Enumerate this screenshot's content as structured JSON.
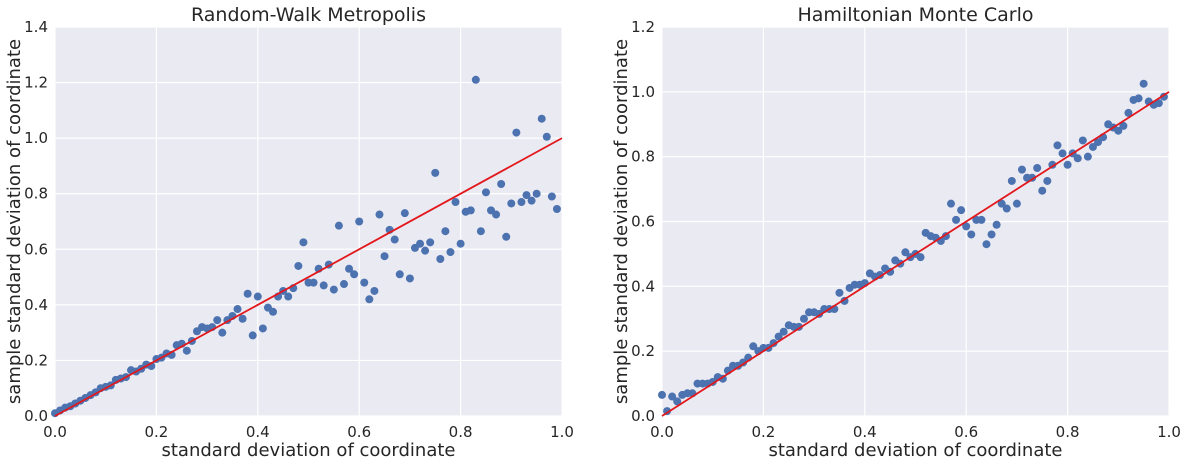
{
  "colors": {
    "plot_bg": "#EAEAF2",
    "grid": "#FFFFFF",
    "points": "#4C72B0",
    "line": "#E3181C",
    "text": "#262626"
  },
  "chart_data": [
    {
      "type": "scatter",
      "title": "Random-Walk Metropolis",
      "xlabel": "standard deviation of coordinate",
      "ylabel": "sample standard deviation of coordinate",
      "xlim": [
        0,
        1
      ],
      "ylim": [
        0,
        1.4
      ],
      "xticks": [
        "0.0",
        "0.2",
        "0.4",
        "0.6",
        "0.8",
        "1.0"
      ],
      "yticks": [
        "0.0",
        "0.2",
        "0.4",
        "0.6",
        "0.8",
        "1.0",
        "1.2",
        "1.4"
      ],
      "grid": true,
      "reference_line": {
        "x": [
          0,
          1
        ],
        "y": [
          0,
          1
        ]
      },
      "points": [
        [
          0.0,
          0.01
        ],
        [
          0.01,
          0.02
        ],
        [
          0.02,
          0.03
        ],
        [
          0.03,
          0.035
        ],
        [
          0.04,
          0.045
        ],
        [
          0.05,
          0.055
        ],
        [
          0.06,
          0.065
        ],
        [
          0.07,
          0.075
        ],
        [
          0.08,
          0.085
        ],
        [
          0.09,
          0.1
        ],
        [
          0.1,
          0.105
        ],
        [
          0.11,
          0.11
        ],
        [
          0.12,
          0.13
        ],
        [
          0.13,
          0.135
        ],
        [
          0.14,
          0.14
        ],
        [
          0.15,
          0.165
        ],
        [
          0.16,
          0.16
        ],
        [
          0.17,
          0.17
        ],
        [
          0.18,
          0.185
        ],
        [
          0.19,
          0.18
        ],
        [
          0.2,
          0.205
        ],
        [
          0.21,
          0.21
        ],
        [
          0.22,
          0.225
        ],
        [
          0.23,
          0.22
        ],
        [
          0.24,
          0.255
        ],
        [
          0.25,
          0.26
        ],
        [
          0.26,
          0.235
        ],
        [
          0.27,
          0.27
        ],
        [
          0.28,
          0.305
        ],
        [
          0.29,
          0.32
        ],
        [
          0.3,
          0.315
        ],
        [
          0.31,
          0.32
        ],
        [
          0.32,
          0.345
        ],
        [
          0.33,
          0.3
        ],
        [
          0.34,
          0.345
        ],
        [
          0.35,
          0.36
        ],
        [
          0.36,
          0.385
        ],
        [
          0.37,
          0.35
        ],
        [
          0.38,
          0.44
        ],
        [
          0.39,
          0.29
        ],
        [
          0.4,
          0.43
        ],
        [
          0.41,
          0.315
        ],
        [
          0.42,
          0.39
        ],
        [
          0.43,
          0.375
        ],
        [
          0.44,
          0.43
        ],
        [
          0.45,
          0.45
        ],
        [
          0.46,
          0.43
        ],
        [
          0.47,
          0.46
        ],
        [
          0.48,
          0.54
        ],
        [
          0.49,
          0.625
        ],
        [
          0.5,
          0.48
        ],
        [
          0.51,
          0.48
        ],
        [
          0.52,
          0.53
        ],
        [
          0.53,
          0.47
        ],
        [
          0.54,
          0.545
        ],
        [
          0.55,
          0.455
        ],
        [
          0.56,
          0.685
        ],
        [
          0.57,
          0.475
        ],
        [
          0.58,
          0.53
        ],
        [
          0.59,
          0.51
        ],
        [
          0.6,
          0.7
        ],
        [
          0.61,
          0.48
        ],
        [
          0.62,
          0.42
        ],
        [
          0.63,
          0.45
        ],
        [
          0.64,
          0.725
        ],
        [
          0.65,
          0.575
        ],
        [
          0.66,
          0.67
        ],
        [
          0.67,
          0.635
        ],
        [
          0.68,
          0.51
        ],
        [
          0.69,
          0.73
        ],
        [
          0.7,
          0.495
        ],
        [
          0.71,
          0.605
        ],
        [
          0.72,
          0.62
        ],
        [
          0.73,
          0.595
        ],
        [
          0.74,
          0.625
        ],
        [
          0.75,
          0.875
        ],
        [
          0.76,
          0.565
        ],
        [
          0.77,
          0.665
        ],
        [
          0.78,
          0.59
        ],
        [
          0.79,
          0.77
        ],
        [
          0.8,
          0.62
        ],
        [
          0.81,
          0.735
        ],
        [
          0.82,
          0.74
        ],
        [
          0.83,
          1.21
        ],
        [
          0.84,
          0.665
        ],
        [
          0.85,
          0.805
        ],
        [
          0.86,
          0.74
        ],
        [
          0.87,
          0.725
        ],
        [
          0.88,
          0.835
        ],
        [
          0.89,
          0.645
        ],
        [
          0.9,
          0.765
        ],
        [
          0.91,
          1.02
        ],
        [
          0.92,
          0.77
        ],
        [
          0.93,
          0.795
        ],
        [
          0.94,
          0.775
        ],
        [
          0.95,
          0.8
        ],
        [
          0.96,
          1.07
        ],
        [
          0.97,
          1.005
        ],
        [
          0.98,
          0.79
        ],
        [
          0.99,
          0.745
        ]
      ]
    },
    {
      "type": "scatter",
      "title": "Hamiltonian Monte Carlo",
      "xlabel": "standard deviation of coordinate",
      "ylabel": "sample standard deviation of coordinate",
      "xlim": [
        0,
        1
      ],
      "ylim": [
        0,
        1.2
      ],
      "xticks": [
        "0.0",
        "0.2",
        "0.4",
        "0.6",
        "0.8",
        "1.0"
      ],
      "yticks": [
        "0.0",
        "0.2",
        "0.4",
        "0.6",
        "0.8",
        "1.0",
        "1.2"
      ],
      "grid": true,
      "reference_line": {
        "x": [
          0,
          1
        ],
        "y": [
          0,
          1
        ]
      },
      "points": [
        [
          0.0,
          0.065
        ],
        [
          0.01,
          0.015
        ],
        [
          0.02,
          0.06
        ],
        [
          0.03,
          0.045
        ],
        [
          0.04,
          0.065
        ],
        [
          0.05,
          0.07
        ],
        [
          0.06,
          0.07
        ],
        [
          0.07,
          0.1
        ],
        [
          0.08,
          0.1
        ],
        [
          0.09,
          0.1
        ],
        [
          0.1,
          0.105
        ],
        [
          0.11,
          0.12
        ],
        [
          0.12,
          0.115
        ],
        [
          0.13,
          0.14
        ],
        [
          0.14,
          0.155
        ],
        [
          0.15,
          0.155
        ],
        [
          0.16,
          0.165
        ],
        [
          0.17,
          0.18
        ],
        [
          0.18,
          0.215
        ],
        [
          0.19,
          0.2
        ],
        [
          0.2,
          0.21
        ],
        [
          0.21,
          0.21
        ],
        [
          0.22,
          0.225
        ],
        [
          0.23,
          0.245
        ],
        [
          0.24,
          0.26
        ],
        [
          0.25,
          0.28
        ],
        [
          0.26,
          0.275
        ],
        [
          0.27,
          0.275
        ],
        [
          0.28,
          0.3
        ],
        [
          0.29,
          0.32
        ],
        [
          0.3,
          0.32
        ],
        [
          0.31,
          0.315
        ],
        [
          0.32,
          0.33
        ],
        [
          0.33,
          0.33
        ],
        [
          0.34,
          0.33
        ],
        [
          0.35,
          0.38
        ],
        [
          0.36,
          0.355
        ],
        [
          0.37,
          0.395
        ],
        [
          0.38,
          0.405
        ],
        [
          0.39,
          0.405
        ],
        [
          0.4,
          0.41
        ],
        [
          0.41,
          0.44
        ],
        [
          0.42,
          0.43
        ],
        [
          0.43,
          0.435
        ],
        [
          0.44,
          0.455
        ],
        [
          0.45,
          0.445
        ],
        [
          0.46,
          0.48
        ],
        [
          0.47,
          0.47
        ],
        [
          0.48,
          0.505
        ],
        [
          0.49,
          0.49
        ],
        [
          0.5,
          0.5
        ],
        [
          0.51,
          0.49
        ],
        [
          0.52,
          0.565
        ],
        [
          0.53,
          0.555
        ],
        [
          0.54,
          0.55
        ],
        [
          0.55,
          0.54
        ],
        [
          0.56,
          0.555
        ],
        [
          0.57,
          0.655
        ],
        [
          0.58,
          0.605
        ],
        [
          0.59,
          0.635
        ],
        [
          0.6,
          0.585
        ],
        [
          0.61,
          0.56
        ],
        [
          0.62,
          0.605
        ],
        [
          0.63,
          0.605
        ],
        [
          0.64,
          0.53
        ],
        [
          0.65,
          0.56
        ],
        [
          0.66,
          0.59
        ],
        [
          0.67,
          0.655
        ],
        [
          0.68,
          0.64
        ],
        [
          0.69,
          0.725
        ],
        [
          0.7,
          0.655
        ],
        [
          0.71,
          0.76
        ],
        [
          0.72,
          0.735
        ],
        [
          0.73,
          0.735
        ],
        [
          0.74,
          0.765
        ],
        [
          0.75,
          0.695
        ],
        [
          0.76,
          0.725
        ],
        [
          0.77,
          0.775
        ],
        [
          0.78,
          0.835
        ],
        [
          0.79,
          0.81
        ],
        [
          0.8,
          0.775
        ],
        [
          0.81,
          0.81
        ],
        [
          0.82,
          0.795
        ],
        [
          0.83,
          0.85
        ],
        [
          0.84,
          0.8
        ],
        [
          0.85,
          0.83
        ],
        [
          0.86,
          0.845
        ],
        [
          0.87,
          0.86
        ],
        [
          0.88,
          0.9
        ],
        [
          0.89,
          0.89
        ],
        [
          0.9,
          0.88
        ],
        [
          0.91,
          0.895
        ],
        [
          0.92,
          0.935
        ],
        [
          0.93,
          0.975
        ],
        [
          0.94,
          0.98
        ],
        [
          0.95,
          1.025
        ],
        [
          0.96,
          0.97
        ],
        [
          0.97,
          0.96
        ],
        [
          0.98,
          0.965
        ],
        [
          0.99,
          0.985
        ]
      ]
    }
  ]
}
